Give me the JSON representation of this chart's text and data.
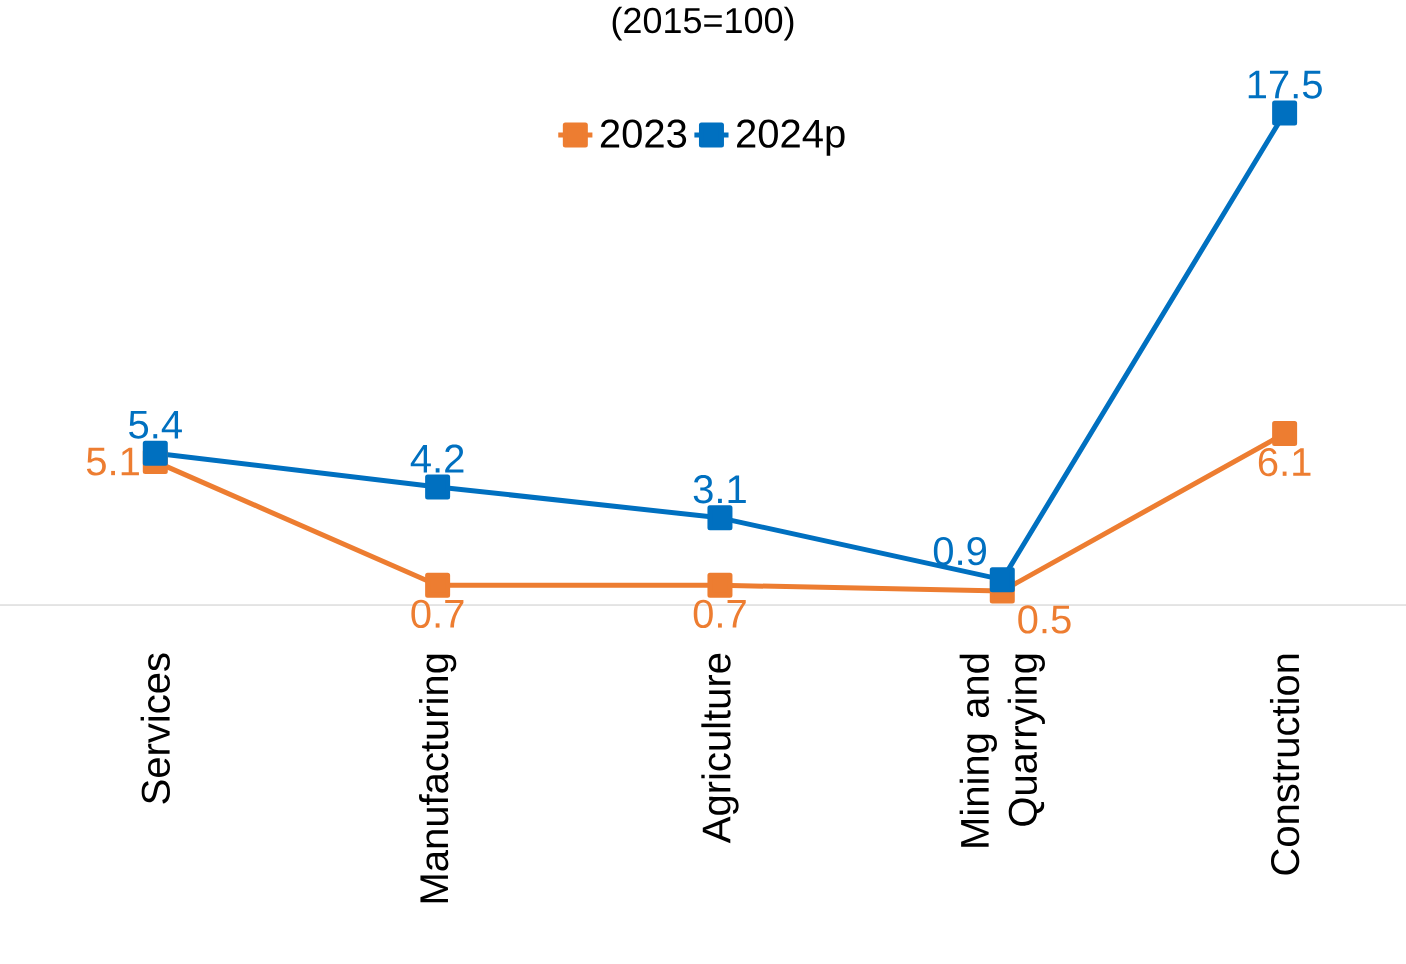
{
  "chart_data": {
    "type": "line",
    "subtitle": "(2015=100)",
    "categories": [
      "Services",
      "Manufacturing",
      "Agriculture",
      "Mining and Quarrying",
      "Construction"
    ],
    "series": [
      {
        "name": "2023",
        "color": "#ed7d31",
        "values": [
          5.1,
          0.7,
          0.7,
          0.5,
          6.1
        ]
      },
      {
        "name": "2024p",
        "color": "#0070c0",
        "values": [
          5.4,
          4.2,
          3.1,
          0.9,
          17.5
        ]
      }
    ],
    "data_labels": true,
    "legend": "top",
    "marker": "square",
    "line_style": "solid"
  }
}
